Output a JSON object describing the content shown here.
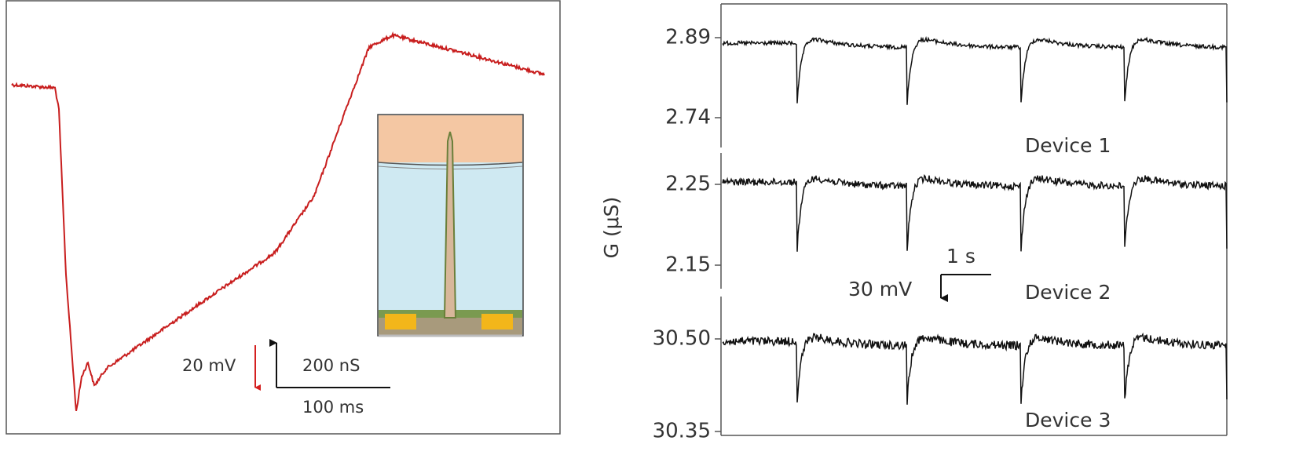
{
  "left_panel": {
    "scale_bar": {
      "voltage": "20 mV",
      "conductance": "200 nS",
      "time": "100 ms"
    }
  },
  "right_panel": {
    "y_axis_label": "G (μS)",
    "yticks": [
      "2.89",
      "2.74",
      "2.25",
      "2.15",
      "30.50",
      "30.35"
    ],
    "devices": [
      "Device 1",
      "Device 2",
      "Device 3"
    ],
    "scale_bar": {
      "time": "1 s",
      "voltage": "30 mV"
    }
  }
}
